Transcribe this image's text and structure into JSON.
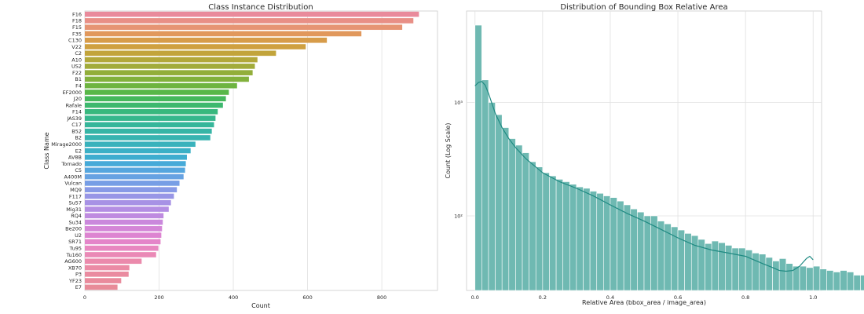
{
  "chart_data": [
    {
      "type": "bar",
      "orientation": "horizontal",
      "title": "Class Instance Distribution",
      "xlabel": "Count",
      "ylabel": "Class Name",
      "xlim": [
        0,
        950
      ],
      "xticks": [
        "0",
        "200",
        "400",
        "600",
        "800"
      ],
      "grid": true,
      "categories": [
        "F16",
        "F18",
        "F15",
        "F35",
        "C130",
        "V22",
        "C2",
        "A10",
        "US2",
        "F22",
        "B1",
        "F4",
        "EF2000",
        "J20",
        "Rafale",
        "F14",
        "JAS39",
        "C17",
        "B52",
        "B2",
        "Mirage2000",
        "E2",
        "AV8B",
        "Tornado",
        "C5",
        "A400M",
        "Vulcan",
        "MQ9",
        "F117",
        "Su57",
        "Mig31",
        "RQ4",
        "Su34",
        "Be200",
        "U2",
        "SR71",
        "Tu95",
        "Tu160",
        "AG600",
        "XB70",
        "P3",
        "YF23",
        "E7"
      ],
      "values": [
        900,
        885,
        855,
        745,
        652,
        595,
        515,
        465,
        458,
        452,
        442,
        410,
        388,
        380,
        372,
        358,
        352,
        348,
        342,
        338,
        298,
        285,
        275,
        272,
        270,
        266,
        255,
        248,
        240,
        232,
        226,
        212,
        210,
        208,
        206,
        204,
        198,
        192,
        153,
        120,
        118,
        98,
        88
      ],
      "colors": [
        "#e98a9b",
        "#e88f86",
        "#e69473",
        "#e1985c",
        "#d79c4a",
        "#cfa040",
        "#c2a43b",
        "#b2a83a",
        "#a2ab3a",
        "#92ae3a",
        "#82b13c",
        "#6eb440",
        "#58b748",
        "#45b85c",
        "#3db86e",
        "#38b87e",
        "#36b78d",
        "#36b69a",
        "#37b5a6",
        "#38b4b1",
        "#39b2bc",
        "#3bb0c6",
        "#3eadcf",
        "#46aad8",
        "#55a6de",
        "#66a2e2",
        "#779ee5",
        "#889ae6",
        "#9896e6",
        "#a792e5",
        "#b48ee3",
        "#bf8be0",
        "#ca88dc",
        "#d485d7",
        "#dd84d1",
        "#e485c9",
        "#e887c0",
        "#ea89b6",
        "#eb8aac",
        "#eb8ba5",
        "#ea8ba0",
        "#e98b9c",
        "#e88b98"
      ]
    },
    {
      "type": "histogram",
      "title": "Distribution of Bounding Box Relative Area",
      "xlabel": "Relative Area (bbox_area / image_area)",
      "ylabel": "Count (Log Scale)",
      "yscale": "log",
      "xlim": [
        -0.025,
        1.025
      ],
      "ylim": [
        22,
        6400
      ],
      "xticks": [
        "0.0",
        "0.2",
        "0.4",
        "0.6",
        "0.8",
        "1.0"
      ],
      "yticks": [
        {
          "value": 100,
          "label": "10²"
        },
        {
          "value": 1000,
          "label": "10³"
        }
      ],
      "grid": true,
      "bin_width": 0.02,
      "bar_color": "#6fb9b2",
      "kde_color": "#1f8a82",
      "counts": [
        4800,
        1580,
        1000,
        780,
        600,
        480,
        420,
        360,
        300,
        270,
        240,
        225,
        210,
        200,
        190,
        180,
        175,
        165,
        158,
        150,
        145,
        135,
        125,
        115,
        108,
        100,
        100,
        90,
        85,
        80,
        75,
        70,
        67,
        62,
        57,
        60,
        58,
        55,
        52,
        52,
        50,
        47,
        46,
        43,
        40,
        42,
        38,
        36,
        36,
        35,
        36,
        34,
        33,
        32,
        33,
        32,
        30,
        30,
        32,
        30,
        140
      ],
      "kde": [
        [
          0.0,
          1400
        ],
        [
          0.01,
          1500
        ],
        [
          0.02,
          1530
        ],
        [
          0.03,
          1420
        ],
        [
          0.04,
          1200
        ],
        [
          0.05,
          980
        ],
        [
          0.06,
          800
        ],
        [
          0.08,
          600
        ],
        [
          0.1,
          480
        ],
        [
          0.12,
          400
        ],
        [
          0.15,
          320
        ],
        [
          0.2,
          240
        ],
        [
          0.25,
          200
        ],
        [
          0.3,
          175
        ],
        [
          0.35,
          150
        ],
        [
          0.4,
          125
        ],
        [
          0.45,
          105
        ],
        [
          0.5,
          90
        ],
        [
          0.55,
          76
        ],
        [
          0.6,
          64
        ],
        [
          0.65,
          55
        ],
        [
          0.7,
          50
        ],
        [
          0.75,
          47
        ],
        [
          0.8,
          44
        ],
        [
          0.85,
          38
        ],
        [
          0.88,
          35
        ],
        [
          0.9,
          33
        ],
        [
          0.92,
          32.5
        ],
        [
          0.94,
          33
        ],
        [
          0.96,
          36
        ],
        [
          0.98,
          42
        ],
        [
          0.99,
          44
        ],
        [
          1.0,
          41
        ]
      ]
    }
  ]
}
